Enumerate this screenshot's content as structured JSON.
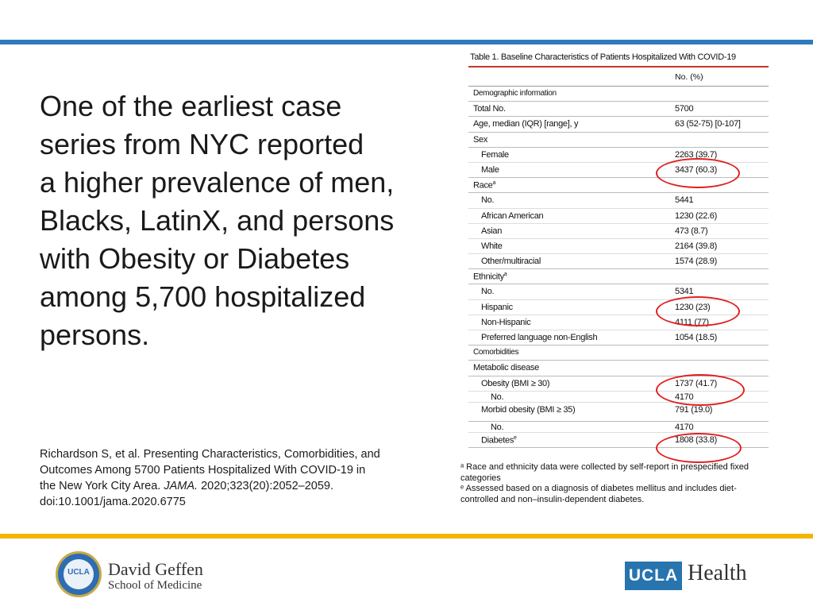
{
  "headline": [
    "One of the earliest case",
    "series from NYC reported",
    "a higher prevalence of men,",
    "Blacks, LatinX, and persons",
    "with Obesity or Diabetes",
    "among 5,700 hospitalized",
    "persons."
  ],
  "citation": {
    "line1": "Richardson S, et al. Presenting Characteristics, Comorbidities, and",
    "line2": "Outcomes Among 5700 Patients Hospitalized With COVID-19 in",
    "line3_pre": "the New York City Area.",
    "journal": "JAMA.",
    "line3_post": "2020;323(20):2052–2059.",
    "line4": "doi:10.1001/jama.2020.6775"
  },
  "table": {
    "title": "Table 1. Baseline Characteristics of Patients Hospitalized With COVID-19",
    "col_header": "No. (%)",
    "rows": [
      {
        "label": "Demographic information",
        "value": ""
      },
      {
        "label": "Total No.",
        "value": "5700"
      },
      {
        "label": "Age, median (IQR) [range], y",
        "value": "63 (52-75) [0-107]"
      },
      {
        "label": "Sex",
        "value": ""
      },
      {
        "label": "Female",
        "value": "2263 (39.7)"
      },
      {
        "label": "Male",
        "value": "3437 (60.3)"
      },
      {
        "label": "Race",
        "value": ""
      },
      {
        "label": "No.",
        "value": "5441"
      },
      {
        "label": "African American",
        "value": "1230 (22.6)"
      },
      {
        "label": "Asian",
        "value": "473 (8.7)"
      },
      {
        "label": "White",
        "value": "2164 (39.8)"
      },
      {
        "label": "Other/multiracial",
        "value": "1574 (28.9)"
      },
      {
        "label": "Ethnicity",
        "value": ""
      },
      {
        "label": "No.",
        "value": "5341"
      },
      {
        "label": "Hispanic",
        "value": "1230 (23)"
      },
      {
        "label": "Non-Hispanic",
        "value": "4111 (77)"
      },
      {
        "label": "Preferred language non-English",
        "value": "1054 (18.5)"
      },
      {
        "label": "Comorbidities",
        "value": ""
      },
      {
        "label": "Metabolic disease",
        "value": ""
      },
      {
        "label": "Obesity (BMI ≥ 30)",
        "value": "1737 (41.7)"
      },
      {
        "label": "No.",
        "value": "4170"
      },
      {
        "label": "Morbid obesity (BMI ≥ 35)",
        "value": "791 (19.0)"
      },
      {
        "label": "No.",
        "value": "4170"
      },
      {
        "label": "Diabetes",
        "value": "1808 (33.8)"
      }
    ],
    "sup_a": "a",
    "sup_e": "e",
    "footnote_a1": "ᵃ Race and ethnicity data were collected by self-report in prespecified fixed",
    "footnote_a2": "categories",
    "footnote_e1": "ᵉ Assessed based on a diagnosis of diabetes mellitus and includes diet-",
    "footnote_e2": "controlled and non–insulin-dependent diabetes."
  },
  "logos": {
    "dg_badge": "UCLA",
    "dg_name": "David Geffen",
    "dg_school": "School of Medicine",
    "ucla": "UCLA",
    "health": "Health"
  },
  "colors": {
    "top_bar": "#2f7bbd",
    "bottom_bar": "#f5b400",
    "highlight_circle": "#e02020",
    "ucla_blue": "#2774ae"
  }
}
